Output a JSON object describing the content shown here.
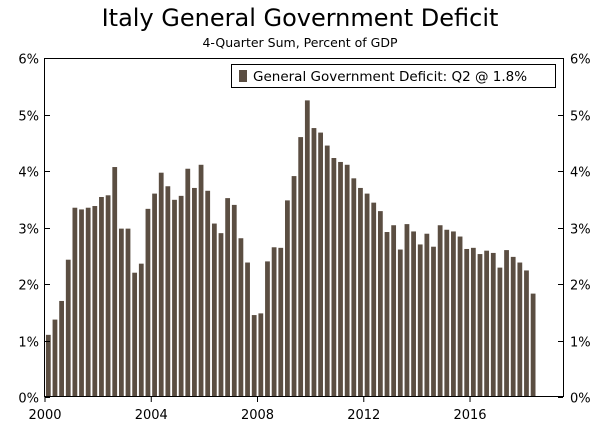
{
  "chart_data": {
    "type": "bar",
    "title": "Italy General Government Deficit",
    "subtitle": "4-Quarter Sum, Percent of GDP",
    "xlabel": "",
    "ylabel": "",
    "ylim": [
      0,
      6
    ],
    "yticks": [
      "0%",
      "1%",
      "2%",
      "3%",
      "4%",
      "5%",
      "6%"
    ],
    "xticks": [
      "2000",
      "2004",
      "2008",
      "2012",
      "2016"
    ],
    "x_start_year": 2000,
    "x_end_year": 2019,
    "grid": false,
    "legend_position": "top-right",
    "bar_color": "#5b4e42",
    "series": [
      {
        "name": "General Government Deficit: Q2 @ 1.8%",
        "values": [
          1.1,
          1.37,
          1.7,
          2.43,
          3.35,
          3.32,
          3.35,
          3.38,
          3.54,
          3.57,
          4.07,
          2.98,
          2.98,
          2.2,
          2.36,
          3.33,
          3.6,
          3.97,
          3.73,
          3.49,
          3.56,
          4.04,
          3.7,
          4.11,
          3.65,
          3.07,
          2.9,
          3.52,
          3.4,
          2.81,
          2.38,
          1.45,
          1.48,
          2.4,
          2.65,
          2.64,
          3.48,
          3.91,
          4.6,
          5.25,
          4.76,
          4.68,
          4.45,
          4.23,
          4.16,
          4.11,
          3.87,
          3.7,
          3.6,
          3.44,
          3.29,
          2.92,
          3.04,
          2.61,
          3.06,
          2.93,
          2.7,
          2.89,
          2.66,
          3.04,
          2.96,
          2.93,
          2.84,
          2.62,
          2.64,
          2.53,
          2.59,
          2.55,
          2.29,
          2.6,
          2.48,
          2.38,
          2.24,
          1.83
        ]
      }
    ]
  }
}
